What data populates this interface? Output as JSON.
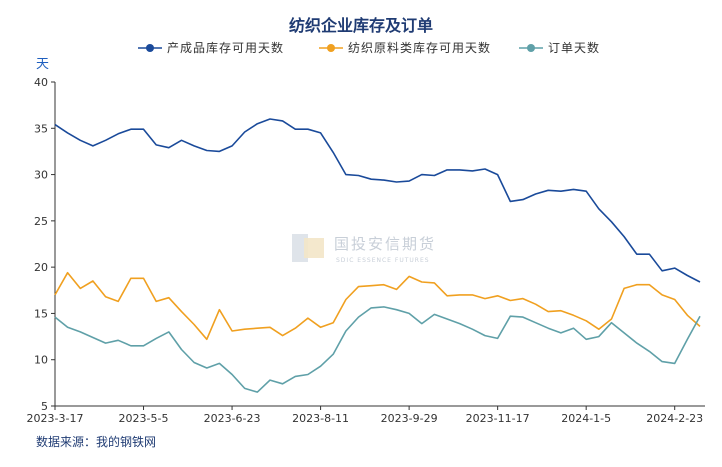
{
  "chart_data": {
    "type": "line",
    "title": "纺织企业库存及订单",
    "ylabel": "天",
    "ylim": [
      5,
      40
    ],
    "yticks": [
      5,
      10,
      15,
      20,
      25,
      30,
      35,
      40
    ],
    "x_tick_labels": [
      "2023-3-17",
      "2023-5-5",
      "2023-6-23",
      "2023-8-11",
      "2023-9-29",
      "2023-11-17",
      "2024-1-5",
      "2024-2-23"
    ],
    "x_start": "2023-03-17",
    "x_end": "2024-03-08",
    "legend_position": "top",
    "grid": false,
    "source": "数据来源：我的钢铁网",
    "watermark": {
      "name": "国投安信期货",
      "sub": "SDIC ESSENCE FUTURES"
    },
    "series": [
      {
        "name": "产成品库存可用天数",
        "color": "#1a4a9a",
        "values": [
          35.4,
          34.5,
          33.7,
          33.1,
          33.7,
          34.4,
          34.9,
          34.9,
          33.2,
          32.9,
          33.7,
          33.1,
          32.6,
          32.5,
          33.1,
          34.6,
          35.5,
          36.0,
          35.8,
          34.9,
          34.9,
          34.5,
          32.4,
          30.0,
          29.9,
          29.5,
          29.4,
          29.2,
          29.3,
          30.0,
          29.9,
          30.5,
          30.5,
          30.4,
          30.6,
          30.0,
          27.1,
          27.3,
          27.9,
          28.3,
          28.2,
          28.4,
          28.2,
          26.3,
          24.9,
          23.3,
          21.4,
          21.4,
          19.6,
          19.9,
          19.1,
          18.4
        ]
      },
      {
        "name": "纺织原料类库存可用天数",
        "color": "#f0a020",
        "values": [
          17.0,
          19.4,
          17.7,
          18.5,
          16.8,
          16.3,
          18.8,
          18.8,
          16.3,
          16.7,
          15.2,
          13.8,
          12.2,
          15.4,
          13.1,
          13.3,
          13.4,
          13.5,
          12.6,
          13.4,
          14.5,
          13.5,
          14.0,
          16.5,
          17.9,
          18.0,
          18.1,
          17.6,
          19.0,
          18.4,
          18.3,
          16.9,
          17.0,
          17.0,
          16.6,
          16.9,
          16.4,
          16.6,
          16.0,
          15.2,
          15.3,
          14.8,
          14.2,
          13.3,
          14.4,
          17.7,
          18.1,
          18.1,
          17.0,
          16.5,
          14.8,
          13.6
        ]
      },
      {
        "name": "订单天数",
        "color": "#5fa0a8",
        "values": [
          14.6,
          13.5,
          13.0,
          12.4,
          11.8,
          12.1,
          11.5,
          11.5,
          12.3,
          13.0,
          11.1,
          9.7,
          9.1,
          9.6,
          8.4,
          6.9,
          6.5,
          7.8,
          7.4,
          8.2,
          8.4,
          9.3,
          10.6,
          13.1,
          14.6,
          15.6,
          15.7,
          15.4,
          15.0,
          13.9,
          14.9,
          14.4,
          13.9,
          13.3,
          12.6,
          12.3,
          14.7,
          14.6,
          14.0,
          13.4,
          12.9,
          13.4,
          12.2,
          12.5,
          14.0,
          12.9,
          11.8,
          10.9,
          9.8,
          9.6,
          12.2,
          14.7
        ]
      }
    ]
  }
}
